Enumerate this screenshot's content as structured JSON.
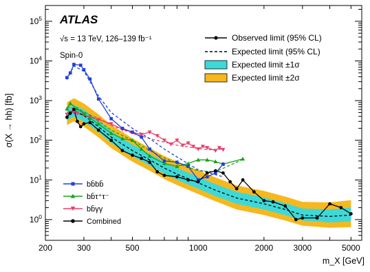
{
  "chart_data": {
    "type": "line",
    "experiment": "ATLAS",
    "energy_label": "√s = 13 TeV, 126–139 fb⁻¹",
    "model_label": "Spin-0",
    "xlabel": "m_X [GeV]",
    "ylabel": "σ(X → hh) [fb]",
    "x_scale": "log",
    "y_scale": "log",
    "xlim": [
      200,
      5600
    ],
    "ylim": [
      0.3,
      250000
    ],
    "x_ticks": [
      200,
      300,
      500,
      1000,
      2000,
      3000,
      5000
    ],
    "y_ticks": [
      1,
      10,
      100,
      1000,
      10000,
      100000
    ],
    "legend_top": [
      "Observed limit (95% CL)",
      "Expected limit (95% CL)",
      "Expected limit ±1σ",
      "Expected limit ±2σ"
    ],
    "colors": {
      "bbbb": "#1f3fdf",
      "bbtautau": "#16a316",
      "bbyy": "#e8406a",
      "combined": "#000000",
      "band1": "#3fd8d8",
      "band2": "#f6b81e"
    },
    "series": [
      {
        "key": "bbbb",
        "name": "bb̄bb̄",
        "marker": "square",
        "observed": [
          [
            251,
            3800
          ],
          [
            260,
            5000
          ],
          [
            270,
            8200
          ],
          [
            290,
            7800
          ],
          [
            300,
            6000
          ],
          [
            320,
            3500
          ],
          [
            350,
            1100
          ],
          [
            400,
            350
          ],
          [
            450,
            200
          ],
          [
            500,
            160
          ],
          [
            550,
            120
          ],
          [
            600,
            60
          ],
          [
            700,
            30
          ],
          [
            800,
            28
          ],
          [
            900,
            22
          ],
          [
            1000,
            10
          ],
          [
            1100,
            12
          ],
          [
            1200,
            15
          ],
          [
            1300,
            25
          ]
        ],
        "expected": [
          [
            251,
            3400
          ],
          [
            270,
            7500
          ],
          [
            300,
            5500
          ],
          [
            350,
            1300
          ],
          [
            400,
            500
          ],
          [
            500,
            200
          ],
          [
            600,
            110
          ],
          [
            700,
            60
          ],
          [
            800,
            38
          ],
          [
            1000,
            18
          ],
          [
            1300,
            12
          ]
        ]
      },
      {
        "key": "bbtautau",
        "name": "bb̄τ⁺τ⁻",
        "marker": "triangle-up",
        "observed": [
          [
            251,
            620
          ],
          [
            260,
            850
          ],
          [
            280,
            620
          ],
          [
            300,
            460
          ],
          [
            320,
            360
          ],
          [
            350,
            260
          ],
          [
            400,
            150
          ],
          [
            450,
            110
          ],
          [
            500,
            100
          ],
          [
            550,
            60
          ],
          [
            600,
            40
          ],
          [
            700,
            26
          ],
          [
            800,
            22
          ],
          [
            900,
            26
          ],
          [
            1000,
            32
          ],
          [
            1100,
            32
          ],
          [
            1200,
            29
          ],
          [
            1300,
            25
          ],
          [
            1600,
            34
          ]
        ],
        "expected": [
          [
            251,
            480
          ],
          [
            280,
            640
          ],
          [
            320,
            430
          ],
          [
            400,
            180
          ],
          [
            500,
            100
          ],
          [
            600,
            55
          ],
          [
            700,
            36
          ],
          [
            800,
            26
          ],
          [
            1000,
            17
          ],
          [
            1200,
            16
          ],
          [
            1600,
            33
          ]
        ]
      },
      {
        "key": "bbyy",
        "name": "bb̄γγ",
        "marker": "triangle-down",
        "observed": [
          [
            251,
            450
          ],
          [
            260,
            500
          ],
          [
            270,
            520
          ],
          [
            280,
            480
          ],
          [
            300,
            430
          ],
          [
            320,
            380
          ],
          [
            350,
            330
          ],
          [
            400,
            260
          ],
          [
            450,
            190
          ],
          [
            500,
            160
          ],
          [
            550,
            140
          ],
          [
            600,
            160
          ],
          [
            650,
            130
          ],
          [
            700,
            100
          ],
          [
            750,
            80
          ],
          [
            800,
            100
          ],
          [
            850,
            75
          ],
          [
            900,
            85
          ],
          [
            950,
            70
          ],
          [
            1000,
            60
          ],
          [
            1050,
            70
          ],
          [
            1100,
            65
          ],
          [
            1200,
            55
          ],
          [
            1250,
            65
          ],
          [
            1300,
            58
          ]
        ],
        "expected": [
          [
            251,
            700
          ],
          [
            280,
            600
          ],
          [
            300,
            500
          ],
          [
            350,
            360
          ],
          [
            400,
            240
          ],
          [
            500,
            150
          ],
          [
            600,
            110
          ],
          [
            700,
            90
          ],
          [
            800,
            75
          ],
          [
            900,
            68
          ],
          [
            1000,
            62
          ],
          [
            1100,
            58
          ],
          [
            1200,
            58
          ],
          [
            1300,
            60
          ]
        ]
      },
      {
        "key": "combined",
        "name": "Combined",
        "marker": "circle",
        "observed": [
          [
            251,
            380
          ],
          [
            260,
            480
          ],
          [
            270,
            600
          ],
          [
            280,
            300
          ],
          [
            290,
            220
          ],
          [
            300,
            260
          ],
          [
            320,
            280
          ],
          [
            350,
            180
          ],
          [
            400,
            100
          ],
          [
            450,
            55
          ],
          [
            500,
            42
          ],
          [
            550,
            35
          ],
          [
            600,
            28
          ],
          [
            650,
            16
          ],
          [
            700,
            13
          ],
          [
            800,
            12
          ],
          [
            900,
            10
          ],
          [
            1000,
            9
          ],
          [
            1100,
            15
          ],
          [
            1200,
            17
          ],
          [
            1300,
            15
          ],
          [
            1400,
            9
          ],
          [
            1500,
            6
          ],
          [
            1600,
            10
          ],
          [
            1800,
            5
          ],
          [
            2000,
            3
          ],
          [
            2200,
            2.8
          ],
          [
            2500,
            2.2
          ],
          [
            2800,
            1
          ],
          [
            3000,
            1.1
          ],
          [
            3500,
            1.1
          ],
          [
            4000,
            2.5
          ],
          [
            4500,
            2
          ],
          [
            5000,
            1.4
          ]
        ],
        "expected": [
          [
            251,
            450
          ],
          [
            270,
            560
          ],
          [
            300,
            420
          ],
          [
            350,
            220
          ],
          [
            400,
            120
          ],
          [
            500,
            55
          ],
          [
            600,
            32
          ],
          [
            700,
            20
          ],
          [
            800,
            14
          ],
          [
            1000,
            8.5
          ],
          [
            1200,
            5.5
          ],
          [
            1500,
            3.5
          ],
          [
            2000,
            2.5
          ],
          [
            2500,
            1.8
          ],
          [
            3000,
            1.3
          ],
          [
            4000,
            1.2
          ],
          [
            5000,
            1.3
          ]
        ],
        "band1_lo": [
          [
            251,
            320
          ],
          [
            270,
            400
          ],
          [
            300,
            300
          ],
          [
            350,
            160
          ],
          [
            400,
            86
          ],
          [
            500,
            40
          ],
          [
            600,
            23
          ],
          [
            700,
            14.5
          ],
          [
            800,
            10
          ],
          [
            1000,
            6
          ],
          [
            1200,
            3.9
          ],
          [
            1500,
            2.5
          ],
          [
            2000,
            1.8
          ],
          [
            2500,
            1.3
          ],
          [
            3000,
            0.95
          ],
          [
            4000,
            0.85
          ],
          [
            5000,
            0.9
          ]
        ],
        "band1_hi": [
          [
            251,
            630
          ],
          [
            270,
            790
          ],
          [
            300,
            590
          ],
          [
            350,
            310
          ],
          [
            400,
            170
          ],
          [
            500,
            78
          ],
          [
            600,
            45
          ],
          [
            700,
            28
          ],
          [
            800,
            20
          ],
          [
            1000,
            12
          ],
          [
            1200,
            7.8
          ],
          [
            1500,
            5
          ],
          [
            2000,
            3.6
          ],
          [
            2500,
            2.6
          ],
          [
            3000,
            1.9
          ],
          [
            4000,
            1.8
          ],
          [
            5000,
            2
          ]
        ],
        "band2_lo": [
          [
            251,
            240
          ],
          [
            270,
            300
          ],
          [
            300,
            220
          ],
          [
            350,
            118
          ],
          [
            400,
            64
          ],
          [
            500,
            29
          ],
          [
            600,
            17
          ],
          [
            700,
            10.5
          ],
          [
            800,
            7.4
          ],
          [
            1000,
            4.4
          ],
          [
            1200,
            2.9
          ],
          [
            1500,
            1.8
          ],
          [
            2000,
            1.3
          ],
          [
            2500,
            0.95
          ],
          [
            3000,
            0.7
          ],
          [
            4000,
            0.62
          ],
          [
            5000,
            0.65
          ]
        ],
        "band2_hi": [
          [
            251,
            900
          ],
          [
            270,
            1150
          ],
          [
            300,
            850
          ],
          [
            350,
            450
          ],
          [
            400,
            245
          ],
          [
            500,
            112
          ],
          [
            600,
            64
          ],
          [
            700,
            40
          ],
          [
            800,
            29
          ],
          [
            1000,
            17.5
          ],
          [
            1200,
            11.5
          ],
          [
            1500,
            7.3
          ],
          [
            2000,
            5.3
          ],
          [
            2500,
            3.8
          ],
          [
            3000,
            2.8
          ],
          [
            4000,
            2.7
          ],
          [
            5000,
            3.1
          ]
        ]
      }
    ]
  }
}
